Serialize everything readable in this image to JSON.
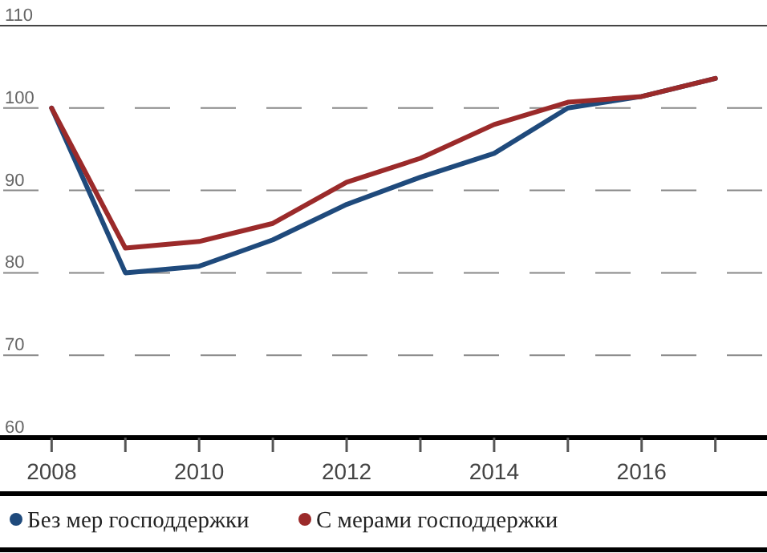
{
  "chart_data": {
    "type": "line",
    "x": [
      2008,
      2009,
      2010,
      2011,
      2012,
      2013,
      2014,
      2015,
      2016,
      2017
    ],
    "series": [
      {
        "name": "Без мер господдержки",
        "color": "#1f4a7c",
        "values": [
          100,
          80,
          80.8,
          84,
          88.3,
          91.6,
          94.5,
          100,
          101.4,
          103.6
        ]
      },
      {
        "name": "С мерами господдержки",
        "color": "#9b2a2a",
        "values": [
          100,
          83,
          83.8,
          86,
          91,
          93.9,
          98,
          100.7,
          101.4,
          103.6
        ]
      }
    ],
    "xlim": [
      2007.3,
      2017.7
    ],
    "xticks": [
      {
        "value": 2008,
        "label": "2008"
      },
      {
        "value": 2009,
        "label": null
      },
      {
        "value": 2010,
        "label": "2010"
      },
      {
        "value": 2011,
        "label": null
      },
      {
        "value": 2012,
        "label": "2012"
      },
      {
        "value": 2013,
        "label": null
      },
      {
        "value": 2014,
        "label": "2014"
      },
      {
        "value": 2015,
        "label": null
      },
      {
        "value": 2016,
        "label": "2016"
      },
      {
        "value": 2017,
        "label": null
      }
    ],
    "ylim": [
      60,
      110
    ],
    "yticks": [
      60,
      70,
      80,
      90,
      100,
      110
    ],
    "grid": "y",
    "legend": "bottom",
    "marker": "none",
    "line_style": "solid"
  }
}
